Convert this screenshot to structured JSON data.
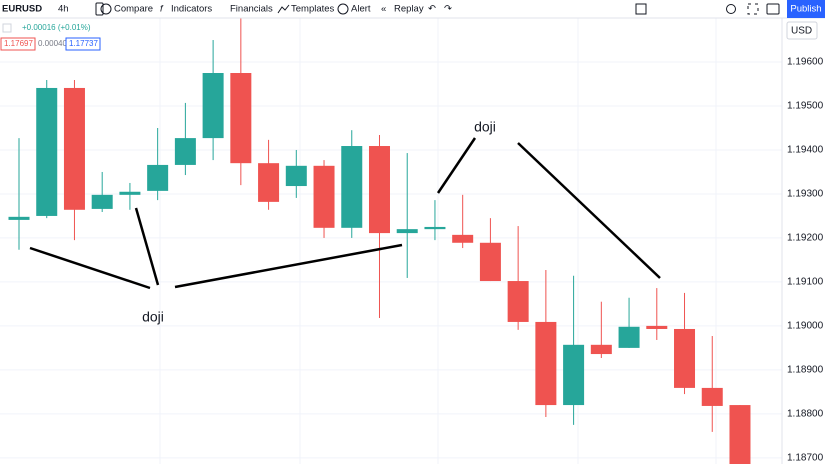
{
  "toolbar": {
    "symbol": "EURUSD",
    "interval": "4h",
    "buttons": [
      "Compare",
      "Indicators",
      "Financials",
      "Templates",
      "Alert",
      "Replay"
    ],
    "publish": "Publish"
  },
  "legend": {
    "change": "+0.00016 (+0.01%)",
    "bid": "1.17697",
    "spread": "0.00040",
    "ask": "1.17737"
  },
  "currency": "USD",
  "chart_data": {
    "type": "candlestick",
    "up_color": "#26a69a",
    "down_color": "#ef5350",
    "open": [
      1.19241,
      1.1925,
      1.19541,
      1.19266,
      1.19298,
      1.19307,
      1.19366,
      1.19427,
      1.19575,
      1.1937,
      1.19318,
      1.19364,
      1.19223,
      1.19409,
      1.19211,
      1.1922,
      1.19207,
      1.19189,
      1.19102,
      1.19009,
      1.1882,
      1.18957,
      1.1895,
      1.19,
      1.18993,
      1.18859,
      1.1882
    ],
    "high": [
      1.19427,
      1.19559,
      1.19559,
      1.1935,
      1.19325,
      1.1945,
      1.19507,
      1.1965,
      1.19707,
      1.19423,
      1.194,
      1.19377,
      1.19445,
      1.19434,
      1.19393,
      1.19286,
      1.19298,
      1.19245,
      1.19227,
      1.19127,
      1.19114,
      1.19055,
      1.19064,
      1.19086,
      1.19075,
      1.18977,
      1.1882
    ],
    "low": [
      1.19173,
      1.19245,
      1.19195,
      1.19259,
      1.19264,
      1.19286,
      1.19343,
      1.19377,
      1.1932,
      1.19264,
      1.19291,
      1.192,
      1.192,
      1.19018,
      1.19109,
      1.19195,
      1.19177,
      1.19102,
      1.18991,
      1.18793,
      1.18775,
      1.18927,
      1.1895,
      1.18968,
      1.18845,
      1.18759,
      1.1868
    ],
    "close": [
      1.19248,
      1.19541,
      1.19264,
      1.19298,
      1.19305,
      1.19366,
      1.19427,
      1.19575,
      1.1937,
      1.19282,
      1.19364,
      1.19223,
      1.19409,
      1.19211,
      1.1922,
      1.19225,
      1.19189,
      1.19102,
      1.19009,
      1.1882,
      1.18957,
      1.18936,
      1.18998,
      1.18993,
      1.18859,
      1.18818,
      1.18686
    ],
    "ylim": [
      1.18686,
      1.19741
    ],
    "yticks": [
      {
        "value": 1.196,
        "label": "1.19600"
      },
      {
        "value": 1.195,
        "label": "1.19500"
      },
      {
        "value": 1.194,
        "label": "1.19400"
      },
      {
        "value": 1.193,
        "label": "1.19300"
      },
      {
        "value": 1.192,
        "label": "1.19200"
      },
      {
        "value": 1.191,
        "label": "1.19100"
      },
      {
        "value": 1.19,
        "label": "1.19000"
      },
      {
        "value": 1.189,
        "label": "1.18900"
      },
      {
        "value": 1.188,
        "label": "1.18800"
      },
      {
        "value": 1.187,
        "label": "1.18700"
      }
    ],
    "annotations": [
      "doji",
      "doji"
    ]
  }
}
